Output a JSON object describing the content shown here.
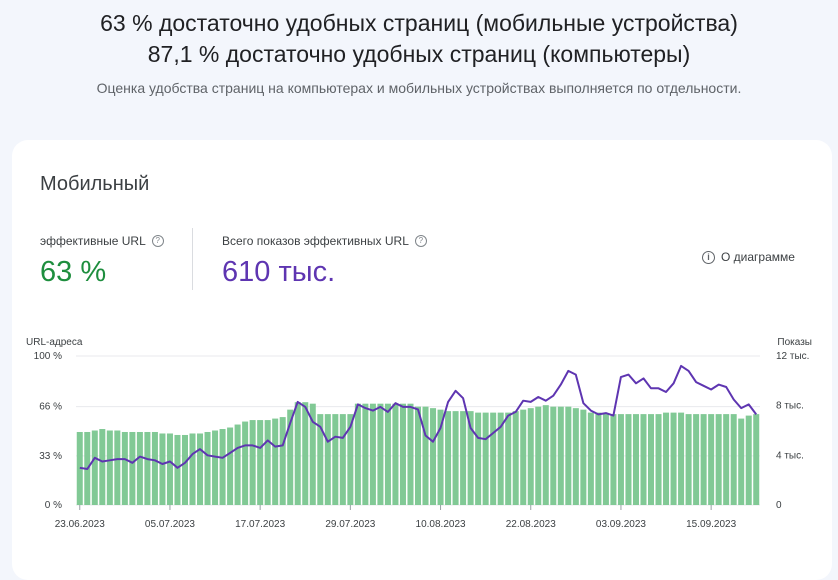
{
  "header": {
    "line1": "63 % достаточно удобных страниц (мобильные устройства)",
    "line2": "87,1 % достаточно удобных страниц (компьютеры)",
    "subtitle": "Оценка удобства страниц на компьютерах и мобильных устройствах выполняется по отдельности."
  },
  "card": {
    "title": "Мобильный",
    "metric1": {
      "label": "эффективные URL",
      "value": "63 %",
      "color": "#1e8e3e"
    },
    "metric2": {
      "label": "Всего показов эффективных URL",
      "value": "610 тыс.",
      "color": "#5e35b1"
    },
    "about_label": "О диаграмме",
    "help_icon": "help-circle-icon",
    "info_icon": "info-circle-icon"
  },
  "chart_data": {
    "type": "bar",
    "left_axis_title": "URL-адреса",
    "right_axis_title": "Показы",
    "left_ticks": [
      "0 %",
      "33 %",
      "66 %",
      "100 %"
    ],
    "left_tick_values": [
      0,
      33,
      66,
      100
    ],
    "right_ticks": [
      "0",
      "4 тыс.",
      "8 тыс.",
      "12 тыс."
    ],
    "right_tick_values": [
      0,
      4000,
      8000,
      12000
    ],
    "ylim_left": [
      0,
      100
    ],
    "ylim_right": [
      0,
      12000
    ],
    "x_tick_labels": [
      "23.06.2023",
      "05.07.2023",
      "17.07.2023",
      "29.07.2023",
      "10.08.2023",
      "22.08.2023",
      "03.09.2023",
      "15.09.2023"
    ],
    "x_tick_indices": [
      0,
      12,
      24,
      36,
      48,
      60,
      72,
      84
    ],
    "bar_color": "#81c995",
    "line_color": "#5e35b1",
    "grid": true,
    "series": [
      {
        "name": "эффективные URL",
        "axis": "left",
        "values": [
          49,
          49,
          50,
          51,
          50,
          50,
          49,
          49,
          49,
          49,
          49,
          48,
          48,
          47,
          47,
          48,
          48,
          49,
          50,
          51,
          52,
          54,
          56,
          57,
          57,
          57,
          58,
          59,
          64,
          69,
          69,
          68,
          61,
          61,
          61,
          61,
          61,
          68,
          68,
          68,
          68,
          68,
          68,
          68,
          68,
          66,
          66,
          65,
          64,
          63,
          63,
          63,
          63,
          62,
          62,
          62,
          62,
          62,
          63,
          64,
          65,
          66,
          67,
          66,
          66,
          66,
          65,
          64,
          62,
          62,
          61,
          61,
          61,
          61,
          61,
          61,
          61,
          61,
          62,
          62,
          62,
          61,
          61,
          61,
          61,
          61,
          61,
          61,
          58,
          60,
          61
        ]
      },
      {
        "name": "Всего показов эффективных URL",
        "axis": "right",
        "values": [
          3000,
          2900,
          3800,
          3500,
          3600,
          3700,
          3700,
          3400,
          3900,
          3700,
          3600,
          3300,
          3500,
          3000,
          3400,
          4100,
          4500,
          4000,
          3900,
          3800,
          4200,
          4600,
          4800,
          4800,
          4600,
          5200,
          4700,
          4800,
          6600,
          8300,
          7900,
          6700,
          6300,
          5100,
          5500,
          5400,
          6300,
          8100,
          7800,
          7600,
          7900,
          7500,
          8200,
          7900,
          7900,
          7700,
          5600,
          5100,
          6200,
          8300,
          9200,
          8600,
          6200,
          5400,
          5300,
          5800,
          6300,
          7200,
          7500,
          8400,
          8300,
          8700,
          8400,
          8800,
          9700,
          10800,
          10500,
          8200,
          7600,
          7300,
          7400,
          7200,
          10300,
          10500,
          9800,
          10200,
          9400,
          9400,
          9100,
          9800,
          11200,
          10800,
          9900,
          9600,
          9300,
          9700,
          9500,
          8500,
          7800,
          8100,
          7300
        ]
      }
    ]
  }
}
